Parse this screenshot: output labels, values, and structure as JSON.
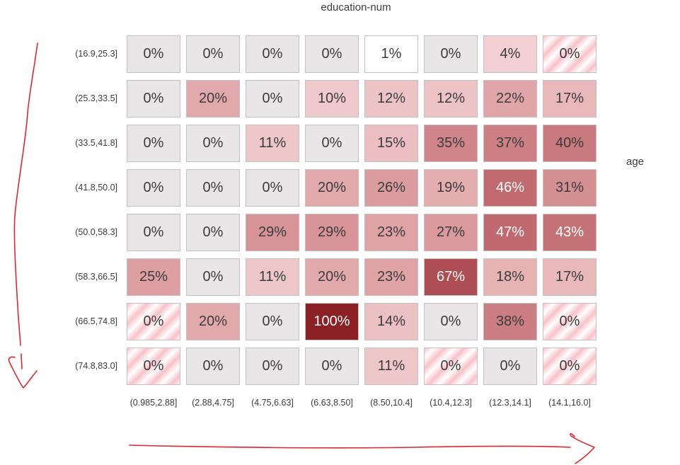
{
  "chart_data": {
    "type": "heatmap",
    "xlabel": "education-num",
    "ylabel": "age",
    "unit": "%",
    "x_bins": [
      "(0.985,2.88]",
      "(2.88,4.75]",
      "(4.75,6.63]",
      "(6.63,8.50]",
      "(8.50,10.4]",
      "(10.4,12.3]",
      "(12.3,14.1]",
      "(14.1,16.0]"
    ],
    "y_bins": [
      "(16.9,25.3]",
      "(25.3,33.5]",
      "(33.5,41.8]",
      "(41.8,50.0]",
      "(50.0,58.3]",
      "(58.3,66.5]",
      "(66.5,74.8]",
      "(74.8,83.0]"
    ],
    "values": [
      [
        0,
        0,
        0,
        0,
        1,
        0,
        4,
        0
      ],
      [
        0,
        20,
        0,
        10,
        12,
        12,
        22,
        17
      ],
      [
        0,
        0,
        11,
        0,
        15,
        35,
        37,
        40
      ],
      [
        0,
        0,
        0,
        20,
        26,
        19,
        46,
        31
      ],
      [
        0,
        0,
        29,
        29,
        23,
        27,
        47,
        43
      ],
      [
        25,
        0,
        11,
        20,
        23,
        67,
        18,
        17
      ],
      [
        0,
        20,
        0,
        100,
        14,
        0,
        38,
        0
      ],
      [
        0,
        0,
        0,
        0,
        11,
        0,
        0,
        0
      ]
    ],
    "striped_cells": [
      [
        0,
        7
      ],
      [
        6,
        0
      ],
      [
        6,
        7
      ],
      [
        7,
        0
      ],
      [
        7,
        5
      ],
      [
        7,
        7
      ]
    ],
    "white_text_min": 43,
    "legend_position": "none",
    "grid": false
  },
  "colors": {
    "zero_bg": "#e8e6e7",
    "cell_border": "#c2c0c1",
    "text_dark": "#3b3b3b",
    "text_light": "#ffffff",
    "stripe_pink": "#f8c1ca",
    "stripe_white": "#ffffff",
    "arrow_red": "#e0262d",
    "scale_anchors": [
      [
        1,
        "#fffefe"
      ],
      [
        4,
        "#f3d0d3"
      ],
      [
        10,
        "#efc9cb"
      ],
      [
        12,
        "#edc4c6"
      ],
      [
        15,
        "#ebbfc1"
      ],
      [
        17,
        "#e8b8ba"
      ],
      [
        20,
        "#e2a9ac"
      ],
      [
        23,
        "#dfa3a6"
      ],
      [
        27,
        "#da9a9d"
      ],
      [
        29,
        "#d79397"
      ],
      [
        31,
        "#d48f93"
      ],
      [
        35,
        "#cf8589"
      ],
      [
        38,
        "#cb7e82"
      ],
      [
        40,
        "#c97a7f"
      ],
      [
        43,
        "#c57276"
      ],
      [
        46,
        "#c16b70"
      ],
      [
        47,
        "#c0696e"
      ],
      [
        67,
        "#af4e52"
      ],
      [
        100,
        "#8b2124"
      ]
    ]
  }
}
